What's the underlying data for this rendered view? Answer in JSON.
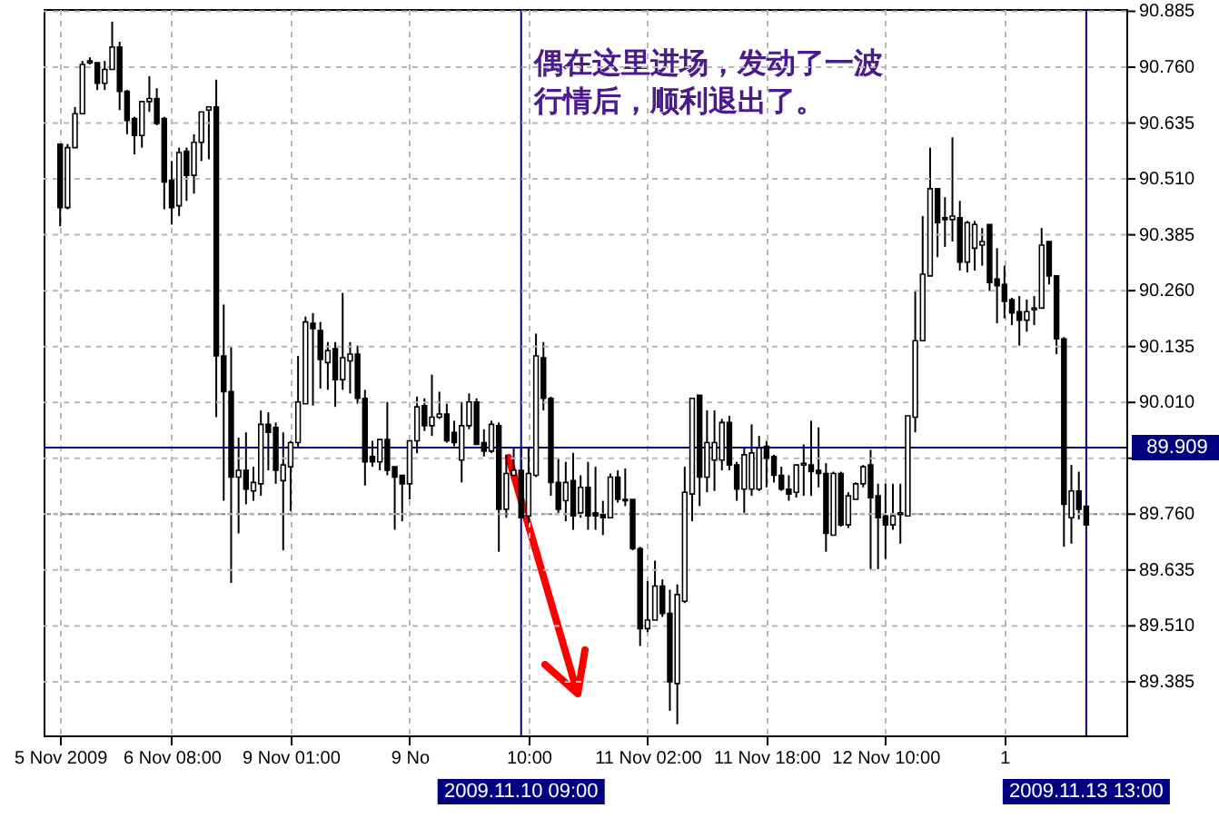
{
  "chart_data": {
    "type": "candlestick",
    "categories": [
      "5 Nov 2009",
      null,
      null,
      null,
      null,
      null,
      null,
      null,
      null,
      null,
      null,
      null,
      null,
      null,
      null,
      "6 Nov 08:00",
      null,
      null,
      null,
      null,
      null,
      null,
      null,
      null,
      null,
      null,
      null,
      null,
      null,
      null,
      null,
      "9 Nov 01:00",
      null,
      null,
      null,
      null,
      null,
      null,
      null,
      null,
      null,
      null,
      null,
      null,
      null,
      null,
      null,
      "9 No",
      null,
      null,
      null,
      null,
      null,
      null,
      null,
      null,
      null,
      null,
      null,
      null,
      null,
      null,
      "2009.11.10 09:00",
      "10:00",
      null,
      null,
      null,
      null,
      null,
      null,
      null,
      null,
      null,
      null,
      null,
      null,
      null,
      null,
      null,
      "11 Nov 02:00",
      null,
      null,
      null,
      null,
      null,
      null,
      null,
      null,
      null,
      null,
      null,
      null,
      null,
      null,
      null,
      "11 Nov 18:00",
      null,
      null,
      null,
      null,
      null,
      null,
      null,
      null,
      null,
      null,
      null,
      null,
      null,
      null,
      null,
      "12 Nov 10:00",
      null,
      null,
      null,
      null,
      null,
      null,
      null,
      null,
      null,
      null,
      null,
      null,
      null,
      null,
      null,
      "1",
      null,
      null,
      null,
      null,
      null,
      null,
      null,
      null,
      null,
      null,
      "2009.11.13 13:00"
    ],
    "ohlc": [
      [
        90.588,
        90.588,
        90.404,
        90.446
      ],
      [
        90.446,
        90.588,
        90.442,
        90.58
      ],
      [
        90.58,
        90.671,
        90.58,
        90.656
      ],
      [
        90.656,
        90.774,
        90.656,
        90.766
      ],
      [
        90.77,
        90.782,
        90.766,
        90.774
      ],
      [
        90.77,
        90.77,
        90.709,
        90.724
      ],
      [
        90.724,
        90.774,
        90.709,
        90.755
      ],
      [
        90.755,
        90.862,
        90.755,
        90.805
      ],
      [
        90.805,
        90.817,
        90.664,
        90.706
      ],
      [
        90.706,
        90.709,
        90.61,
        90.641
      ],
      [
        90.645,
        90.649,
        90.565,
        90.607
      ],
      [
        90.607,
        90.683,
        90.58,
        90.683
      ],
      [
        90.683,
        90.74,
        90.66,
        90.69
      ],
      [
        90.69,
        90.713,
        90.63,
        90.634
      ],
      [
        90.645,
        90.649,
        90.442,
        90.503
      ],
      [
        90.507,
        90.55,
        90.408,
        90.446
      ],
      [
        90.45,
        90.58,
        90.427,
        90.569
      ],
      [
        90.572,
        90.58,
        90.461,
        90.518
      ],
      [
        90.518,
        90.61,
        90.477,
        90.592
      ],
      [
        90.592,
        90.66,
        90.55,
        90.66
      ],
      [
        90.664,
        90.671,
        90.554,
        90.671
      ],
      [
        90.671,
        90.732,
        89.977,
        90.114
      ],
      [
        90.114,
        90.229,
        89.79,
        90.034
      ],
      [
        90.034,
        90.134,
        89.606,
        89.843
      ],
      [
        89.843,
        89.931,
        89.717,
        89.858
      ],
      [
        89.858,
        89.943,
        89.782,
        89.816
      ],
      [
        89.812,
        89.866,
        89.79,
        89.831
      ],
      [
        89.828,
        89.992,
        89.801,
        89.961
      ],
      [
        89.961,
        89.988,
        89.858,
        89.943
      ],
      [
        89.954,
        89.965,
        89.828,
        89.858
      ],
      [
        89.835,
        89.943,
        89.679,
        89.87
      ],
      [
        89.866,
        89.924,
        89.767,
        89.92
      ],
      [
        89.92,
        90.114,
        89.908,
        90.011
      ],
      [
        90.007,
        90.202,
        90.007,
        90.19
      ],
      [
        90.187,
        90.21,
        90.003,
        90.175
      ],
      [
        90.171,
        90.19,
        90.041,
        90.106
      ],
      [
        90.099,
        90.145,
        90.038,
        90.126
      ],
      [
        90.13,
        90.145,
        90.0,
        90.061
      ],
      [
        90.061,
        90.255,
        90.038,
        90.11
      ],
      [
        90.103,
        90.145,
        90.03,
        90.118
      ],
      [
        90.118,
        90.137,
        90.007,
        90.019
      ],
      [
        90.019,
        90.038,
        89.824,
        89.877
      ],
      [
        89.889,
        89.924,
        89.866,
        89.877
      ],
      [
        89.877,
        89.927,
        89.858,
        89.927
      ],
      [
        89.927,
        90.011,
        89.847,
        89.858
      ],
      [
        89.866,
        89.866,
        89.725,
        89.843
      ],
      [
        89.847,
        89.847,
        89.744,
        89.828
      ],
      [
        89.828,
        89.924,
        89.793,
        89.924
      ],
      [
        89.924,
        90.023,
        89.896,
        90.0
      ],
      [
        90.003,
        90.019,
        89.946,
        89.958
      ],
      [
        89.958,
        90.072,
        89.935,
        89.977
      ],
      [
        89.977,
        90.034,
        89.973,
        89.984
      ],
      [
        89.984,
        90.007,
        89.92,
        89.924
      ],
      [
        89.943,
        89.969,
        89.912,
        89.92
      ],
      [
        89.881,
        90.011,
        89.831,
        89.958
      ],
      [
        89.958,
        90.03,
        89.95,
        90.011
      ],
      [
        90.011,
        90.019,
        89.916,
        89.916
      ],
      [
        89.92,
        89.95,
        89.889,
        89.901
      ],
      [
        89.901,
        89.969,
        89.897,
        89.961
      ],
      [
        89.958,
        89.965,
        89.676,
        89.771
      ],
      [
        89.771,
        89.893,
        89.752,
        89.851
      ],
      [
        89.847,
        89.908,
        89.847,
        89.858
      ],
      [
        89.858,
        89.908,
        89.752,
        89.752
      ],
      [
        89.756,
        89.908,
        89.74,
        89.851
      ],
      [
        89.847,
        90.164,
        89.843,
        90.114
      ],
      [
        90.11,
        90.145,
        89.992,
        90.019
      ],
      [
        90.019,
        90.023,
        89.801,
        89.831
      ],
      [
        89.831,
        89.885,
        89.763,
        89.771
      ],
      [
        89.79,
        89.877,
        89.744,
        89.831
      ],
      [
        89.835,
        89.897,
        89.725,
        89.756
      ],
      [
        89.763,
        89.847,
        89.752,
        89.82
      ],
      [
        89.82,
        89.877,
        89.725,
        89.756
      ],
      [
        89.763,
        89.866,
        89.725,
        89.756
      ],
      [
        89.759,
        89.79,
        89.713,
        89.752
      ],
      [
        89.752,
        89.851,
        89.752,
        89.843
      ],
      [
        89.843,
        89.858,
        89.786,
        89.793
      ],
      [
        89.793,
        89.862,
        89.778,
        89.79
      ],
      [
        89.793,
        89.793,
        89.679,
        89.683
      ],
      [
        89.683,
        89.687,
        89.465,
        89.504
      ],
      [
        89.504,
        89.61,
        89.496,
        89.523
      ],
      [
        89.523,
        89.656,
        89.523,
        89.599
      ],
      [
        89.599,
        89.614,
        89.53,
        89.538
      ],
      [
        89.538,
        89.591,
        89.32,
        89.385
      ],
      [
        89.381,
        89.603,
        89.29,
        89.58
      ],
      [
        89.565,
        89.866,
        89.561,
        89.809
      ],
      [
        89.805,
        90.019,
        89.744,
        90.019
      ],
      [
        90.026,
        90.026,
        89.778,
        89.843
      ],
      [
        89.843,
        89.992,
        89.809,
        89.92
      ],
      [
        89.881,
        89.992,
        89.812,
        89.92
      ],
      [
        89.881,
        89.973,
        89.858,
        89.965
      ],
      [
        89.965,
        89.98,
        89.858,
        89.87
      ],
      [
        89.87,
        89.877,
        89.79,
        89.816
      ],
      [
        89.816,
        89.908,
        89.763,
        89.893
      ],
      [
        89.816,
        89.961,
        89.801,
        89.897
      ],
      [
        89.816,
        89.935,
        89.812,
        89.908
      ],
      [
        89.912,
        89.924,
        89.82,
        89.885
      ],
      [
        89.889,
        89.893,
        89.831,
        89.847
      ],
      [
        89.847,
        89.866,
        89.812,
        89.816
      ],
      [
        89.816,
        89.847,
        89.79,
        89.805
      ],
      [
        89.809,
        89.87,
        89.797,
        89.87
      ],
      [
        89.87,
        89.916,
        89.801,
        89.874
      ],
      [
        89.87,
        89.969,
        89.801,
        89.855
      ],
      [
        89.858,
        89.954,
        89.82,
        89.851
      ],
      [
        89.851,
        89.874,
        89.676,
        89.717
      ],
      [
        89.713,
        89.855,
        89.713,
        89.851
      ],
      [
        89.851,
        89.855,
        89.732,
        89.736
      ],
      [
        89.736,
        89.809,
        89.729,
        89.801
      ],
      [
        89.793,
        89.831,
        89.793,
        89.828
      ],
      [
        89.828,
        89.87,
        89.82,
        89.866
      ],
      [
        89.87,
        89.904,
        89.637,
        89.797
      ],
      [
        89.801,
        89.828,
        89.637,
        89.752
      ],
      [
        89.756,
        89.828,
        89.66,
        89.736
      ],
      [
        89.736,
        89.828,
        89.725,
        89.756
      ],
      [
        89.759,
        89.828,
        89.694,
        89.763
      ],
      [
        89.756,
        89.98,
        89.756,
        89.98
      ],
      [
        89.977,
        90.259,
        89.943,
        90.148
      ],
      [
        90.148,
        90.427,
        90.148,
        90.297
      ],
      [
        90.293,
        90.58,
        90.293,
        90.488
      ],
      [
        90.488,
        90.488,
        90.335,
        90.412
      ],
      [
        90.423,
        90.469,
        90.358,
        90.419
      ],
      [
        90.419,
        90.603,
        90.37,
        90.427
      ],
      [
        90.423,
        90.461,
        90.305,
        90.324
      ],
      [
        90.324,
        90.416,
        90.301,
        90.412
      ],
      [
        90.355,
        90.416,
        90.305,
        90.408
      ],
      [
        90.362,
        90.4,
        90.316,
        90.37
      ],
      [
        90.408,
        90.408,
        90.259,
        90.278
      ],
      [
        90.286,
        90.355,
        90.187,
        90.271
      ],
      [
        90.274,
        90.316,
        90.198,
        90.236
      ],
      [
        90.24,
        90.244,
        90.183,
        90.21
      ],
      [
        90.213,
        90.248,
        90.137,
        90.194
      ],
      [
        90.194,
        90.24,
        90.168,
        90.213
      ],
      [
        90.217,
        90.248,
        90.183,
        90.221
      ],
      [
        90.221,
        90.4,
        90.221,
        90.362
      ],
      [
        90.37,
        90.37,
        90.274,
        90.293
      ],
      [
        90.293,
        90.293,
        90.118,
        90.152
      ],
      [
        90.152,
        90.156,
        89.687,
        89.782
      ],
      [
        89.752,
        89.87,
        89.694,
        89.812
      ],
      [
        89.812,
        89.855,
        89.748,
        89.771
      ],
      [
        89.778,
        89.778,
        89.736,
        89.736
      ]
    ],
    "ylim": [
      89.265,
      90.89
    ],
    "yticks": [
      89.385,
      {
        "value": 89.51,
        "label": "89.510"
      },
      89.635,
      {
        "value": 89.76,
        "label": "89.760"
      },
      {
        "value": 89.885,
        "label": null
      },
      {
        "value": 90.01,
        "label": "90.010"
      },
      90.135,
      {
        "value": 90.26,
        "label": "90.260"
      },
      90.385,
      {
        "value": 90.51,
        "label": "90.510"
      },
      90.635,
      {
        "value": 90.76,
        "label": "90.760"
      },
      90.885
    ],
    "grid": true,
    "ref_lines": [
      {
        "axis": "y",
        "value": 89.909,
        "label": "89.909",
        "color": "#000080"
      },
      {
        "axis": "y",
        "value": 89.76,
        "color": "#808080",
        "line_style": "dotted"
      },
      {
        "axis": "x",
        "value": "2009.11.10 09:00",
        "color": "#000080"
      },
      {
        "axis": "x",
        "value": "2009.11.13 13:00",
        "color": "#000080"
      }
    ],
    "annotations": [
      "偶在这里进场，发动了一波行情后，顺利退出了。"
    ]
  }
}
